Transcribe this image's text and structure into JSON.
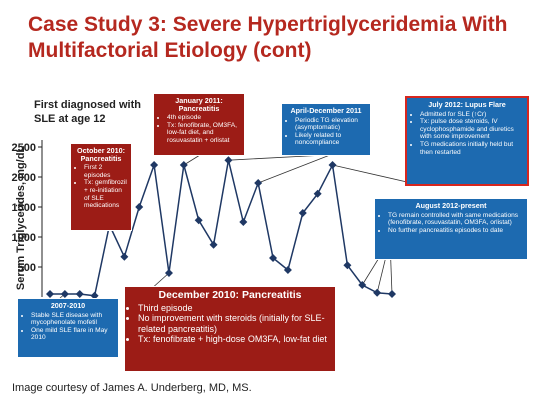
{
  "chart_data": {
    "type": "line",
    "title": "Case Study 3: Severe Hypertriglyceridemia With Multifactorial Etiology (cont)",
    "note": "First diagnosed with SLE at age 12",
    "y_label": "Serum Triglycerides, mg/dL",
    "values": [
      50,
      50,
      50,
      20,
      1200,
      670,
      1500,
      2200,
      400,
      2200,
      1280,
      870,
      2280,
      1250,
      1900,
      650,
      450,
      1400,
      1720,
      2200,
      530,
      200,
      70,
      50
    ],
    "color": "#1f3864",
    "ylim": [
      0,
      2600
    ],
    "yticks": [
      500,
      1000,
      1500,
      2000,
      2500
    ],
    "annotations": [
      {
        "title": "October 2010: Pancreatitis",
        "items": [
          "First 2 episodes",
          "Tx: gemfibrozil + re-initiation of SLE medications"
        ]
      },
      {
        "title": "January 2011: Pancreatitis",
        "items": [
          "4th episode",
          "Tx: fenofibrate, OM3FA, low-fat diet, and rosuvastatin + orlistat"
        ]
      },
      {
        "title": "April-December 2011",
        "items": [
          "Periodic TG elevation (asymptomatic)",
          "Likely related to noncompliance"
        ]
      },
      {
        "title": "July 2012: Lupus Flare",
        "items": [
          "Admitted for SLE (↑Cr)",
          "Tx: pulse dose steroids, IV cyclophosphamide and diuretics with some improvement",
          "TG medications initially held but then restarted"
        ]
      },
      {
        "title": "August 2012-present",
        "items": [
          "TG remain controlled with same medications (fenofibrate, rosuvastatin, OM3FA, orlistat)",
          "No further pancreatitis episodes to date"
        ]
      },
      {
        "title": "2007-2010",
        "items": [
          "Stable SLE disease with mycophenolate mofetil",
          "One mild SLE flare in May 2010"
        ]
      },
      {
        "title": "December 2010: Pancreatitis",
        "items": [
          "Third episode",
          "No improvement with steroids (initially for SLE-related pancreatitis)",
          "Tx: fenofibrate + high-dose OM3FA, low-fat diet"
        ]
      }
    ]
  },
  "caption": "Image courtesy of James A. Underberg, MD, MS."
}
